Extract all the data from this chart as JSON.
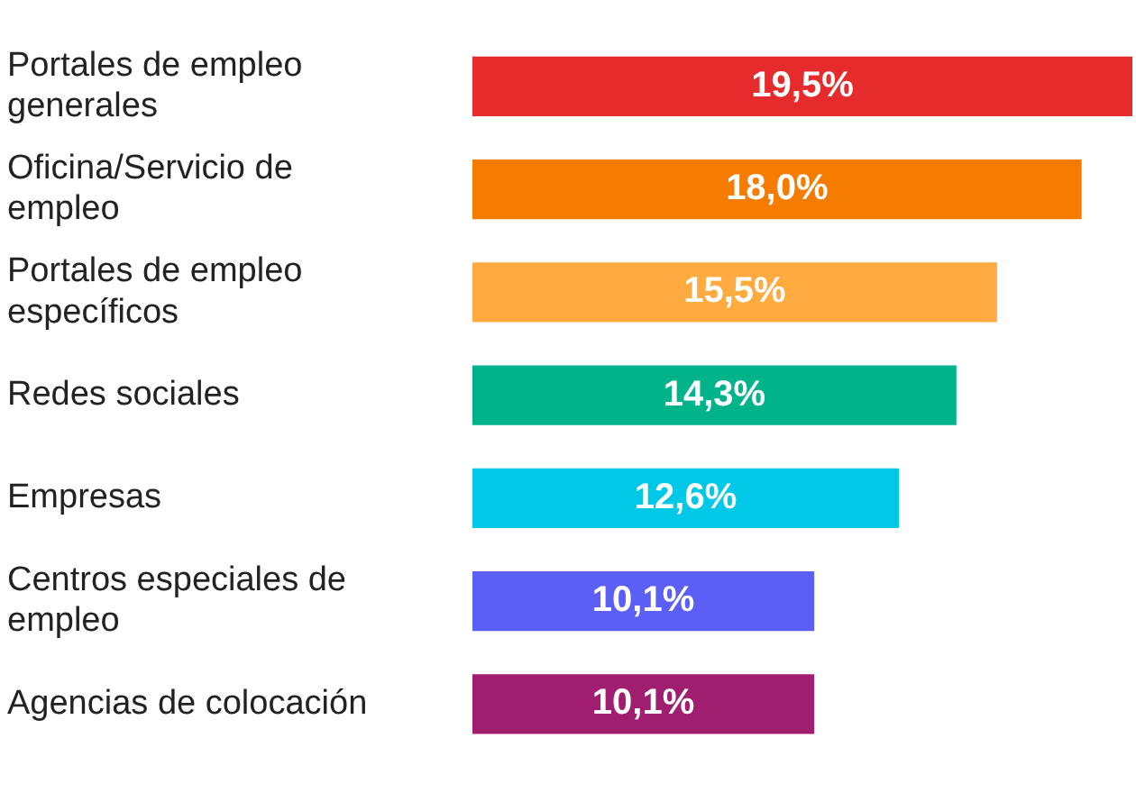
{
  "chart_data": {
    "type": "bar",
    "orientation": "horizontal",
    "tick_labels": "y",
    "legend": false,
    "value_labels": [
      "19,5%",
      "18,0%",
      "15,5%",
      "14,3%",
      "12,6%",
      "10,1%",
      "10,1%"
    ],
    "categories": [
      "Portales de empleo generales",
      "Oficina/Servicio de empleo",
      "Portales de empleo específicos",
      "Redes sociales",
      "Empresas",
      "Centros especiales de empleo",
      "Agencias de colocación"
    ],
    "values": [
      19.5,
      18.0,
      15.5,
      14.3,
      12.6,
      10.1,
      10.1
    ],
    "colors": [
      "#e52b2b",
      "#f57c00",
      "#ffab40",
      "#00b38a",
      "#00c8e6",
      "#5b5ff5",
      "#a01e70"
    ]
  }
}
